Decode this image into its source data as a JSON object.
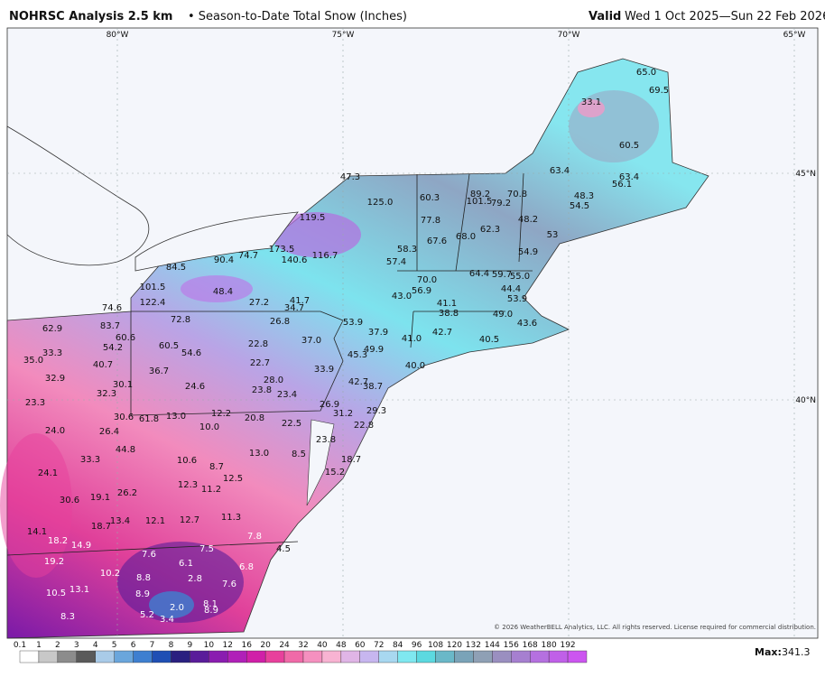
{
  "header": {
    "product": "NOHRSC Analysis 2.5 km",
    "subtitle": "• Season-to-Date Total Snow (Inches)",
    "valid_label": "Valid",
    "valid_range": "Wed 1 Oct 2025—Sun 22 Feb 2026"
  },
  "graticule": {
    "lon": [
      "80°W",
      "75°W",
      "70°W",
      "65°W"
    ],
    "lat": [
      "45°N",
      "40°N"
    ]
  },
  "footer": {
    "copyright": "© 2026 WeatherBELL Analytics, LLC. All rights reserved. License required for commercial distribution.",
    "max_label": "Max:",
    "max_value": "341.3"
  },
  "colorbar": {
    "labels": [
      "0.1",
      "1",
      "2",
      "3",
      "4",
      "5",
      "6",
      "7",
      "8",
      "9",
      "10",
      "12",
      "16",
      "20",
      "24",
      "32",
      "40",
      "48",
      "60",
      "72",
      "84",
      "96",
      "108",
      "120",
      "132",
      "144",
      "156",
      "168",
      "180",
      "192"
    ],
    "colors": [
      "#ffffff",
      "#c8c8c8",
      "#8c8c8c",
      "#5a5a5a",
      "#a9cbe8",
      "#6aa6dc",
      "#3e7fd0",
      "#1f4fb4",
      "#2a2080",
      "#5a1c9a",
      "#8a1db0",
      "#b020b8",
      "#d01fa8",
      "#e8409c",
      "#f06aa8",
      "#f590bf",
      "#f8b3d2",
      "#e0b5e6",
      "#c7b6ef",
      "#a8d8f0",
      "#7fe8f0",
      "#5cd9e0",
      "#6ab8c8",
      "#7aa3b8",
      "#8fa0b5",
      "#9a8fc0",
      "#a67fd0",
      "#b570e0",
      "#c060e8",
      "#cc55f0"
    ]
  },
  "station_values": [
    "65.0",
    "69.5",
    "33.1",
    "60.5",
    "63.4",
    "63.4",
    "56.1",
    "48.3",
    "54.5",
    "47.3",
    "125.0",
    "60.3",
    "89.2",
    "70.8",
    "101.5",
    "79.2",
    "77.8",
    "119.5",
    "48.2",
    "53",
    "62.3",
    "67.6",
    "68.0",
    "58.3",
    "54.9",
    "57.4",
    "173.5",
    "74.7",
    "90.4",
    "116.7",
    "140.6",
    "84.5",
    "64.4",
    "59.7",
    "55.0",
    "70.0",
    "101.5",
    "48.4",
    "44.4",
    "56.9",
    "43.0",
    "53.9",
    "27.2",
    "41.7",
    "34.7",
    "122.4",
    "74.6",
    "41.1",
    "38.8",
    "49.0",
    "72.8",
    "26.8",
    "53.9",
    "43.6",
    "83.7",
    "62.9",
    "60.6",
    "37.9",
    "42.7",
    "41.0",
    "40.5",
    "37.0",
    "22.8",
    "54.2",
    "60.5",
    "54.6",
    "45.3",
    "49.9",
    "33.3",
    "35.0",
    "40.7",
    "22.7",
    "40.0",
    "36.7",
    "33.9",
    "32.9",
    "30.1",
    "28.0",
    "42.7",
    "38.7",
    "24.6",
    "23.8",
    "23.4",
    "32.3",
    "23.3",
    "26.9",
    "31.2",
    "29.3",
    "30.6",
    "61.8",
    "13.0",
    "12.2",
    "20.8",
    "22.5",
    "22.8",
    "10.0",
    "24.0",
    "26.4",
    "23.8",
    "44.8",
    "13.0",
    "8.5",
    "33.3",
    "10.6",
    "8.7",
    "18.7",
    "24.1",
    "15.2",
    "12.5",
    "12.3",
    "11.2",
    "26.2",
    "19.1",
    "30.6",
    "11.3",
    "13.4",
    "12.1",
    "12.7",
    "18.7",
    "14.1",
    "7.8",
    "18.2",
    "14.9",
    "7.5",
    "4.5",
    "7.6",
    "19.2",
    "6.1",
    "6.8",
    "10.2",
    "8.8",
    "2.8",
    "7.6",
    "13.1",
    "10.5",
    "8.9",
    "8.1",
    "8.9",
    "2.0",
    "8.3",
    "5.2",
    "3.4"
  ]
}
